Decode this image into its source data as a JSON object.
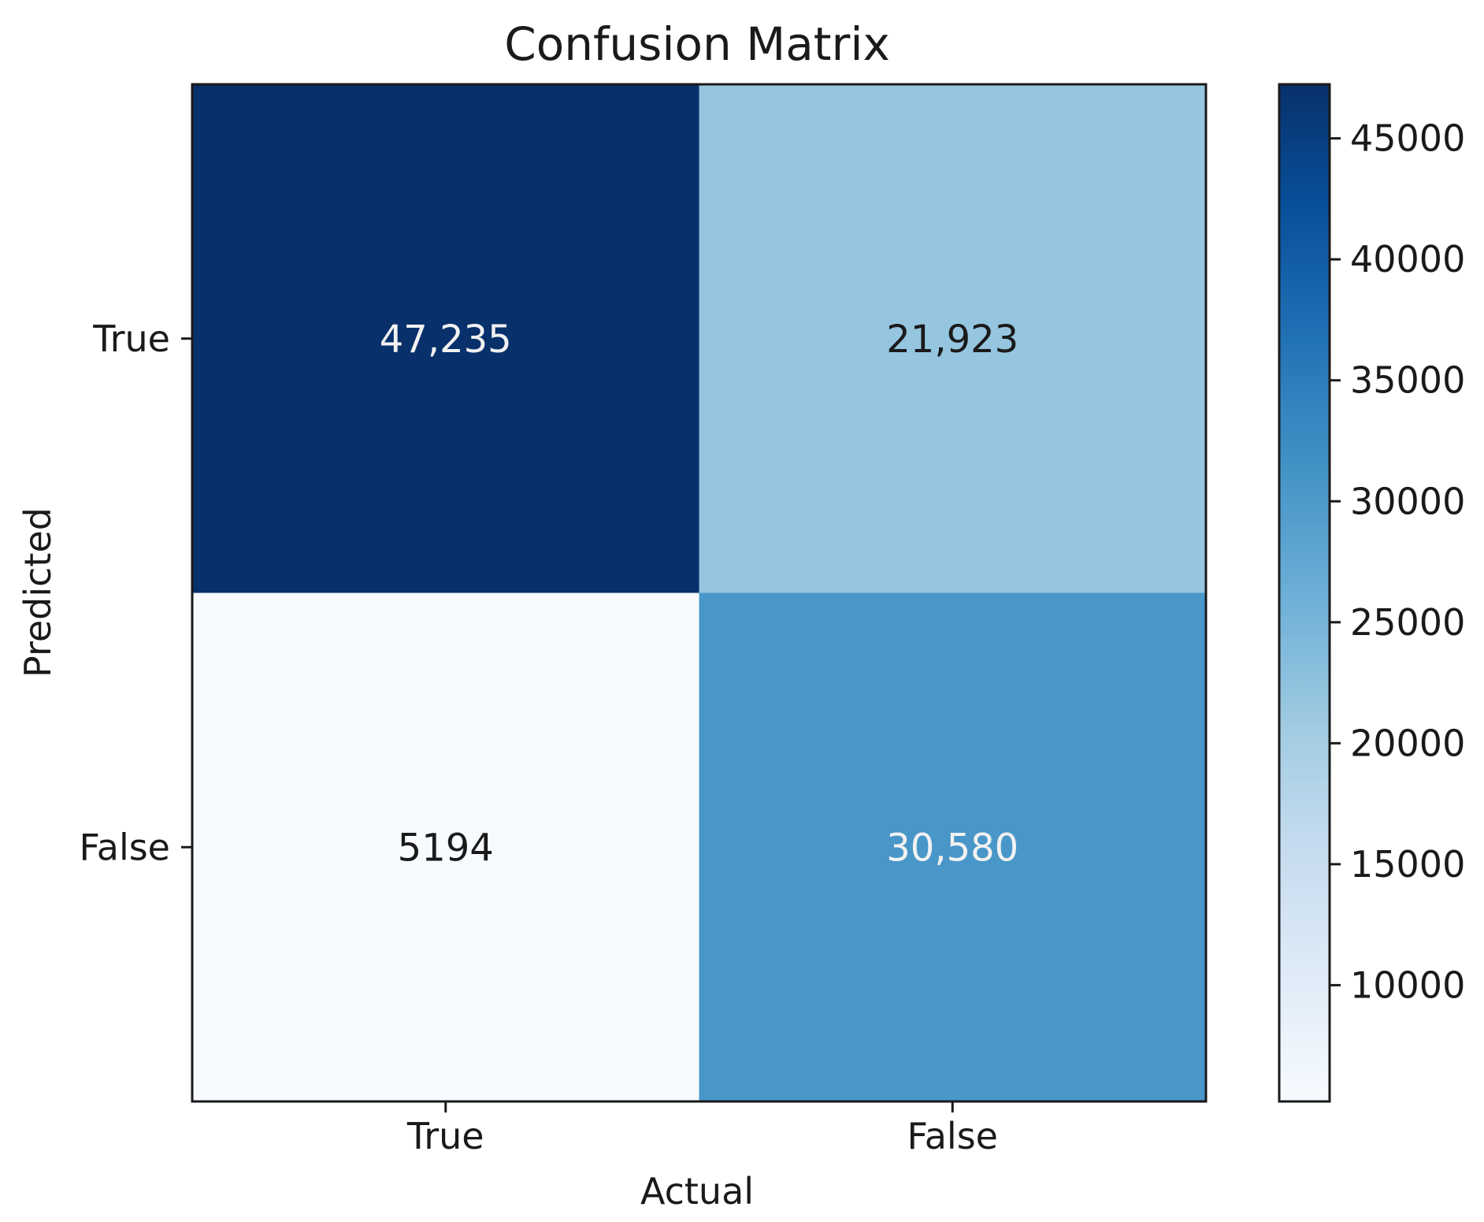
{
  "chart_data": {
    "type": "heatmap",
    "title": "Confusion Matrix",
    "xlabel": "Actual",
    "ylabel": "Predicted",
    "x_categories": [
      "True",
      "False"
    ],
    "y_categories": [
      "True",
      "False"
    ],
    "matrix": [
      [
        47235,
        21923
      ],
      [
        5194,
        30580
      ]
    ],
    "cell_labels": [
      [
        "47,235",
        "21,923"
      ],
      [
        "5194",
        "30,580"
      ]
    ],
    "colormap": "Blues",
    "colorbar": {
      "range": [
        5194,
        47235
      ],
      "ticks": [
        10000,
        15000,
        20000,
        25000,
        30000,
        35000,
        40000,
        45000
      ],
      "tick_labels": [
        "10000",
        "15000",
        "20000",
        "25000",
        "30000",
        "35000",
        "40000",
        "45000"
      ]
    },
    "grid": false
  }
}
